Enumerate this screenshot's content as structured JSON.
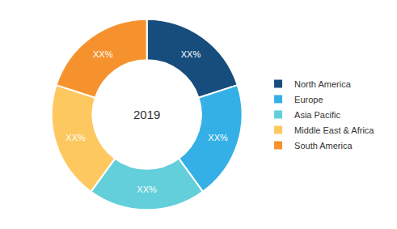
{
  "chart_data": {
    "type": "pie",
    "categories": [
      "North America",
      "Europe",
      "Asia Pacific",
      "Middle East & Africa",
      "South America"
    ],
    "values": [
      20,
      20,
      20,
      20,
      20
    ],
    "value_labels": [
      "XX%",
      "XX%",
      "XX%",
      "XX%",
      "XX%"
    ],
    "colors": [
      "#174d7c",
      "#34b0e6",
      "#62cfda",
      "#fdc85f",
      "#f6922e"
    ],
    "annotations": [
      "2019"
    ],
    "data_labels": true,
    "legend": "right"
  }
}
